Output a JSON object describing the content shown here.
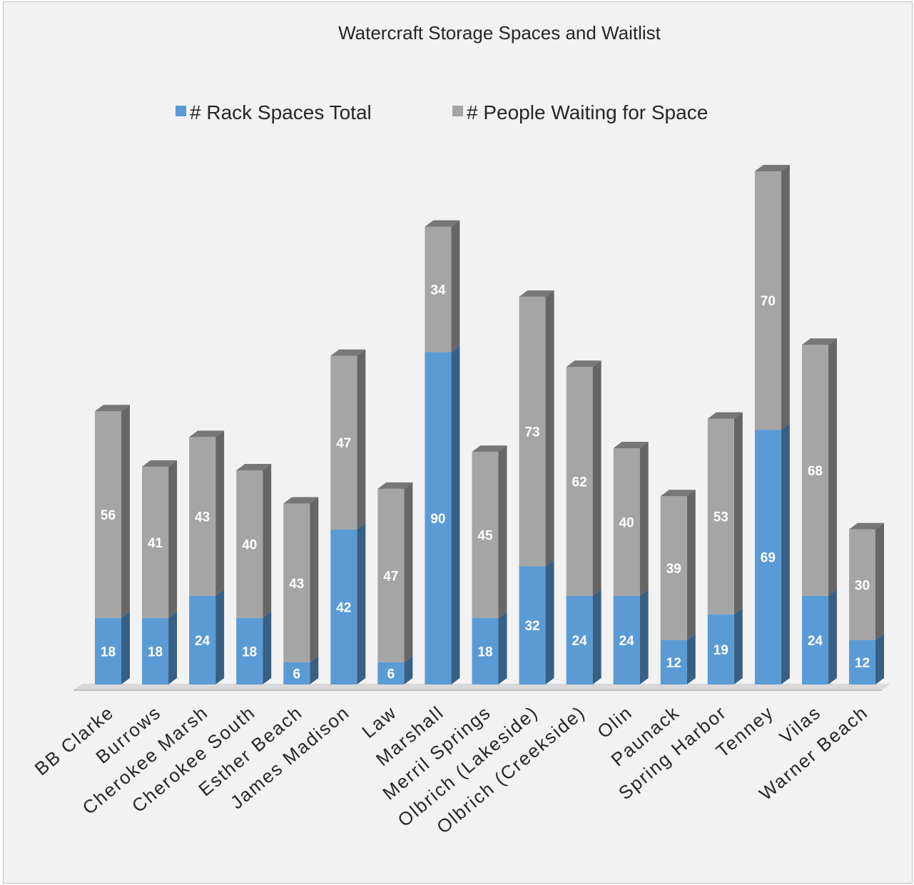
{
  "chart_data": {
    "type": "bar",
    "stacked": true,
    "style": "3d",
    "title": "Watercraft Storage Spaces and Waitlist",
    "legend_position": "top",
    "grid": false,
    "categories": [
      "BB Clarke",
      "Burrows",
      "Cherokee Marsh",
      "Cherokee South",
      "Esther Beach",
      "James Madison",
      "Law",
      "Marshall",
      "Merril Springs",
      "Olbrich (Lakeside)",
      "Olbrich (Creekside)",
      "Olin",
      "Paunack",
      "Spring Harbor",
      "Tenney",
      "Vilas",
      "Warner Beach"
    ],
    "series": [
      {
        "name": "# Rack Spaces Total",
        "color": "#5b9bd5",
        "values": [
          18,
          18,
          24,
          18,
          6,
          42,
          6,
          90,
          18,
          32,
          24,
          24,
          12,
          19,
          69,
          24,
          12
        ]
      },
      {
        "name": "# People Waiting for Space",
        "color": "#a5a5a5",
        "values": [
          56,
          41,
          43,
          40,
          43,
          47,
          47,
          34,
          45,
          73,
          62,
          40,
          39,
          53,
          70,
          68,
          30
        ]
      }
    ],
    "ylim": [
      0,
      139
    ],
    "xlabel": "",
    "ylabel": ""
  }
}
